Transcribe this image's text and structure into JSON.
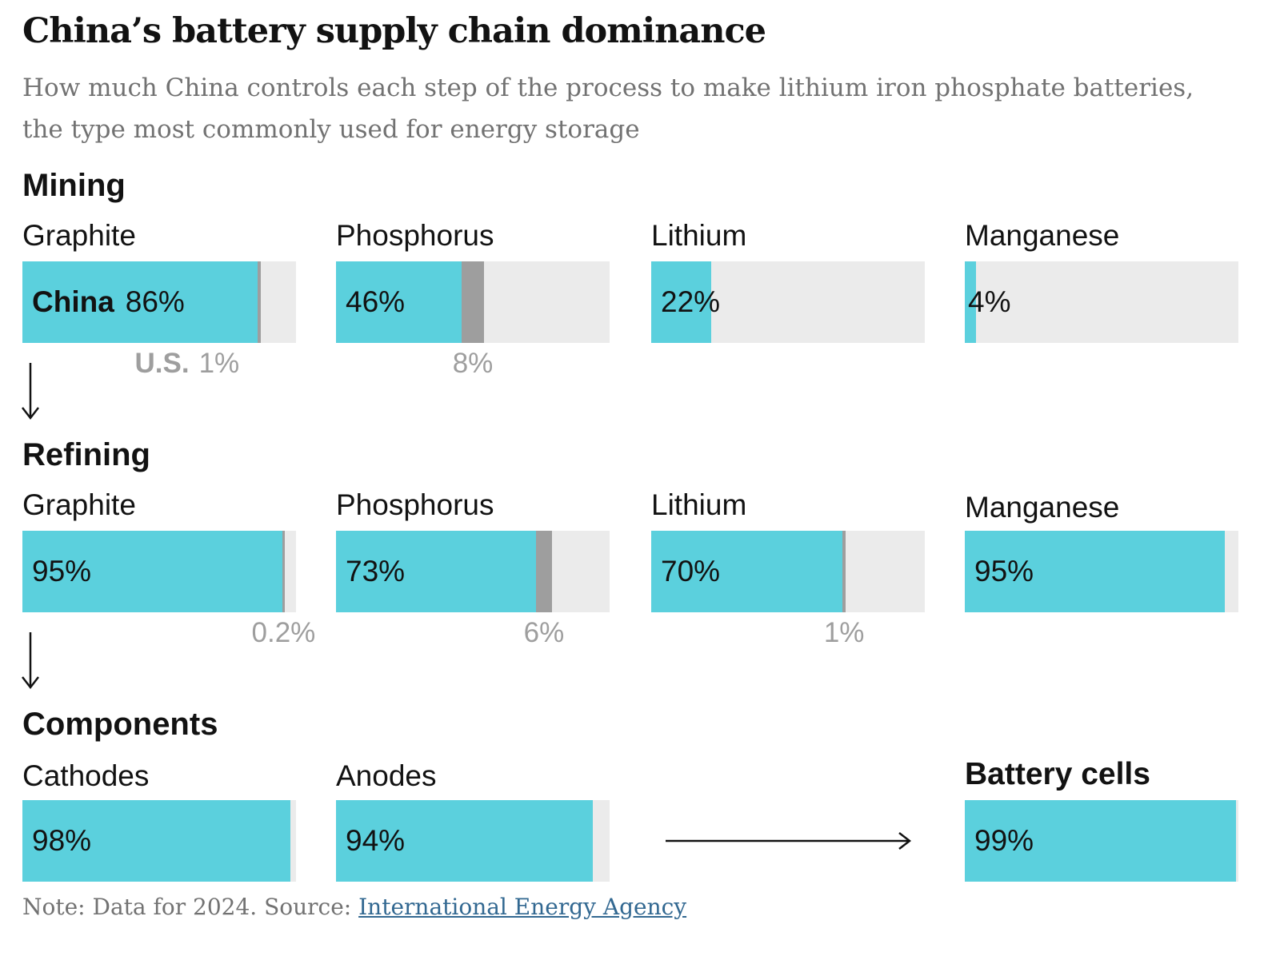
{
  "title": "China’s battery supply chain dominance",
  "subtitle": "How much China controls each step of the process to make lithium iron phosphate batteries, the type most commonly used for energy storage",
  "colors": {
    "china": "#5bd0dd",
    "us": "#9e9e9e",
    "track": "#ebebeb",
    "link": "#326891"
  },
  "stages": {
    "mining": {
      "label": "Mining"
    },
    "refining": {
      "label": "Refining"
    },
    "components": {
      "label": "Components"
    }
  },
  "chart_data": {
    "type": "bar",
    "orientation": "horizontal",
    "unit": "percent of global supply",
    "series": [
      {
        "name": "China",
        "color": "#5bd0dd"
      },
      {
        "name": "U.S.",
        "color": "#9e9e9e"
      }
    ],
    "bars": [
      {
        "id": "mining-graphite",
        "stage": "Mining",
        "label": "Graphite",
        "china": 86,
        "china_label": "86%",
        "country_label": "China",
        "us": 1,
        "us_label": "1%",
        "us_country_label": "U.S."
      },
      {
        "id": "mining-phosphorus",
        "stage": "Mining",
        "label": "Phosphorus",
        "china": 46,
        "china_label": "46%",
        "us": 8,
        "us_label": "8%"
      },
      {
        "id": "mining-lithium",
        "stage": "Mining",
        "label": "Lithium",
        "china": 22,
        "china_label": "22%"
      },
      {
        "id": "mining-manganese",
        "stage": "Mining",
        "label": "Manganese",
        "china": 4,
        "china_label": "4%"
      },
      {
        "id": "refining-graphite",
        "stage": "Refining",
        "label": "Graphite",
        "china": 95,
        "china_label": "95%",
        "us": 0.2,
        "us_label": "0.2%"
      },
      {
        "id": "refining-phosphorus",
        "stage": "Refining",
        "label": "Phosphorus",
        "china": 73,
        "china_label": "73%",
        "us": 6,
        "us_label": "6%"
      },
      {
        "id": "refining-lithium",
        "stage": "Refining",
        "label": "Lithium",
        "china": 70,
        "china_label": "70%",
        "us": 1,
        "us_label": "1%"
      },
      {
        "id": "refining-manganese",
        "stage": "Refining",
        "label": "Manganese",
        "china": 95,
        "china_label": "95%"
      },
      {
        "id": "components-cathodes",
        "stage": "Components",
        "label": "Cathodes",
        "china": 98,
        "china_label": "98%"
      },
      {
        "id": "components-anodes",
        "stage": "Components",
        "label": "Anodes",
        "china": 94,
        "china_label": "94%"
      },
      {
        "id": "battery-cells",
        "stage": "Battery cells",
        "label": "Battery cells",
        "label_bold": true,
        "china": 99,
        "china_label": "99%"
      }
    ]
  },
  "note": {
    "prefix": "Note: Data for 2024. Source: ",
    "link": "International Energy Agency"
  }
}
